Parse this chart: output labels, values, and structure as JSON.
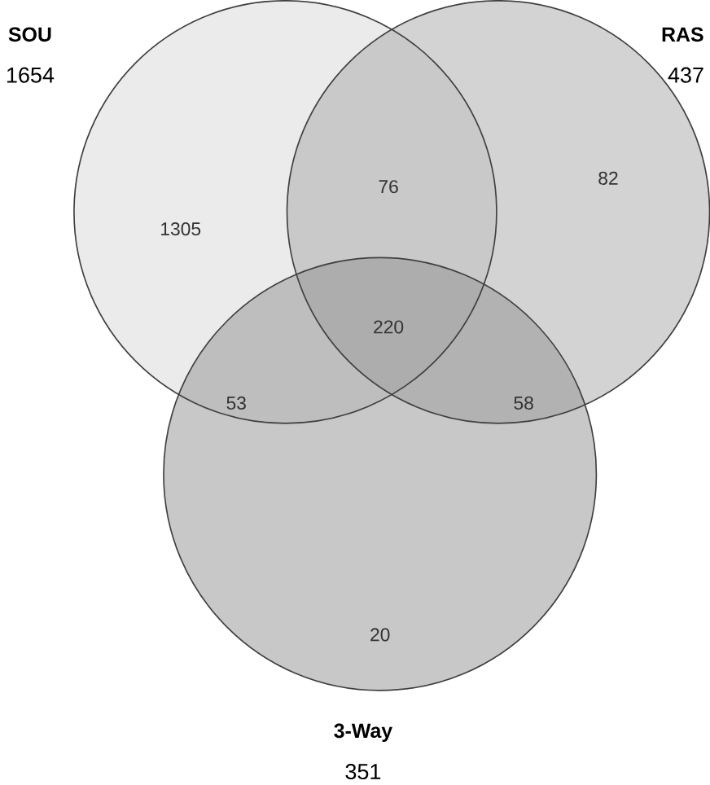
{
  "chart_data": {
    "type": "other",
    "categories": [
      "SOU",
      "RAS",
      "3-Way"
    ],
    "values": [
      1654,
      437,
      351
    ],
    "colors": [
      "#d8d8d8",
      "#a7a7a7",
      "#929292"
    ],
    "annotations": [
      "1305",
      "82",
      "20",
      "76",
      "53",
      "58",
      "220"
    ],
    "data_labels": true
  }
}
